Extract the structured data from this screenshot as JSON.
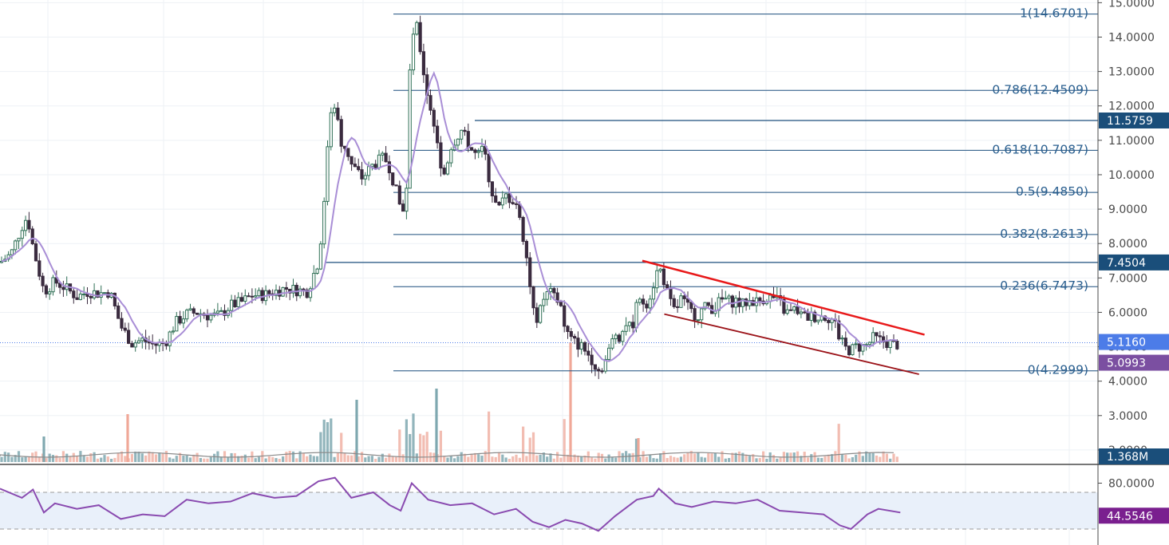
{
  "chart_data": {
    "type": "candlestick",
    "price_axis": {
      "ticks": [
        "15.0000",
        "14.0000",
        "13.0000",
        "12.0000",
        "11.0000",
        "10.0000",
        "9.0000",
        "8.0000",
        "7.0000",
        "6.0000",
        "5.0000",
        "4.0000",
        "3.0000",
        "2.0000"
      ],
      "range": [
        1.0,
        15.0
      ],
      "grid": true
    },
    "rsi_axis": {
      "ticks": [
        "80.0000"
      ],
      "upper_band": 70,
      "lower_band": 30,
      "range": [
        20,
        90
      ]
    },
    "fib_levels": [
      {
        "ratio": 1,
        "value": 14.6701,
        "label": "1(14.6701)"
      },
      {
        "ratio": 0.786,
        "value": 12.4509,
        "label": "0.786(12.4509)"
      },
      {
        "ratio": 0.618,
        "value": 10.7087,
        "label": "0.618(10.7087)"
      },
      {
        "ratio": 0.5,
        "value": 9.485,
        "label": "0.5(9.4850)"
      },
      {
        "ratio": 0.382,
        "value": 8.2613,
        "label": "0.382(8.2613)"
      },
      {
        "ratio": 0.236,
        "value": 6.7473,
        "label": "0.236(6.7473)"
      },
      {
        "ratio": 0,
        "value": 4.2999,
        "label": "0(4.2999)"
      }
    ],
    "horizontal_lines": [
      {
        "value": 11.5759,
        "label": "11.5759",
        "color": "#1a4e7a"
      },
      {
        "value": 7.4504,
        "label": "7.4504",
        "color": "#1a4e7a"
      }
    ],
    "price_badges": [
      {
        "value": 5.116,
        "label": "5.1160",
        "color": "#4c7ce8"
      },
      {
        "value": 5.0993,
        "label": "5.0993",
        "color": "#7b4fa1"
      }
    ],
    "volume_badge": {
      "label": "1.368M",
      "color": "#1a4e7a"
    },
    "rsi_badge": {
      "value": 44.5546,
      "label": "44.5546",
      "color": "#7a1f8f"
    },
    "trendlines": [
      {
        "name": "upper",
        "color": "#e8191a",
        "from": [
          0.585,
          7.5
        ],
        "to": [
          0.842,
          5.35
        ]
      },
      {
        "name": "lower",
        "color": "#9b1218",
        "from": [
          0.605,
          5.95
        ],
        "to": [
          0.837,
          4.2
        ]
      }
    ],
    "close_path": [
      [
        0,
        7.45
      ],
      [
        0.01,
        7.7
      ],
      [
        0.02,
        8.5
      ],
      [
        0.025,
        8.8
      ],
      [
        0.03,
        7.9
      ],
      [
        0.04,
        6.6
      ],
      [
        0.05,
        6.9
      ],
      [
        0.06,
        6.7
      ],
      [
        0.07,
        6.45
      ],
      [
        0.08,
        6.6
      ],
      [
        0.09,
        6.55
      ],
      [
        0.1,
        6.6
      ],
      [
        0.11,
        5.6
      ],
      [
        0.12,
        5.1
      ],
      [
        0.13,
        5.2
      ],
      [
        0.14,
        5.05
      ],
      [
        0.15,
        5.1
      ],
      [
        0.16,
        5.7
      ],
      [
        0.17,
        5.95
      ],
      [
        0.18,
        6.0
      ],
      [
        0.19,
        5.9
      ],
      [
        0.2,
        5.9
      ],
      [
        0.21,
        6.2
      ],
      [
        0.22,
        6.3
      ],
      [
        0.23,
        6.5
      ],
      [
        0.24,
        6.5
      ],
      [
        0.25,
        6.6
      ],
      [
        0.26,
        6.7
      ],
      [
        0.27,
        6.65
      ],
      [
        0.28,
        6.6
      ],
      [
        0.29,
        7.5
      ],
      [
        0.295,
        9.0
      ],
      [
        0.3,
        11.8
      ],
      [
        0.305,
        12.1
      ],
      [
        0.31,
        11.0
      ],
      [
        0.315,
        10.8
      ],
      [
        0.32,
        10.3
      ],
      [
        0.33,
        9.9
      ],
      [
        0.34,
        10.3
      ],
      [
        0.35,
        10.5
      ],
      [
        0.355,
        10.2
      ],
      [
        0.36,
        9.6
      ],
      [
        0.365,
        9.0
      ],
      [
        0.37,
        9.2
      ],
      [
        0.372,
        12.5
      ],
      [
        0.375,
        13.6
      ],
      [
        0.378,
        14.6
      ],
      [
        0.382,
        13.8
      ],
      [
        0.388,
        12.5
      ],
      [
        0.393,
        11.8
      ],
      [
        0.4,
        10.5
      ],
      [
        0.405,
        10.0
      ],
      [
        0.41,
        10.8
      ],
      [
        0.42,
        11.3
      ],
      [
        0.425,
        11.0
      ],
      [
        0.43,
        10.7
      ],
      [
        0.435,
        10.5
      ],
      [
        0.44,
        10.8
      ],
      [
        0.445,
        10.0
      ],
      [
        0.45,
        9.2
      ],
      [
        0.455,
        9.0
      ],
      [
        0.46,
        9.4
      ],
      [
        0.47,
        9.2
      ],
      [
        0.475,
        8.4
      ],
      [
        0.48,
        7.7
      ],
      [
        0.485,
        6.0
      ],
      [
        0.49,
        5.8
      ],
      [
        0.495,
        6.4
      ],
      [
        0.5,
        6.6
      ],
      [
        0.505,
        6.4
      ],
      [
        0.51,
        6.3
      ],
      [
        0.515,
        5.5
      ],
      [
        0.52,
        5.2
      ],
      [
        0.525,
        5.1
      ],
      [
        0.53,
        5.0
      ],
      [
        0.535,
        4.8
      ],
      [
        0.54,
        4.6
      ],
      [
        0.545,
        4.3
      ],
      [
        0.55,
        4.5
      ],
      [
        0.555,
        4.9
      ],
      [
        0.56,
        5.4
      ],
      [
        0.565,
        5.3
      ],
      [
        0.57,
        5.7
      ],
      [
        0.575,
        5.5
      ],
      [
        0.58,
        6.2
      ],
      [
        0.585,
        6.3
      ],
      [
        0.59,
        6.3
      ],
      [
        0.595,
        6.8
      ],
      [
        0.6,
        7.35
      ],
      [
        0.605,
        6.9
      ],
      [
        0.61,
        6.3
      ],
      [
        0.615,
        6.0
      ],
      [
        0.62,
        6.4
      ],
      [
        0.625,
        6.2
      ],
      [
        0.63,
        6.0
      ],
      [
        0.635,
        5.9
      ],
      [
        0.64,
        6.1
      ],
      [
        0.645,
        6.2
      ],
      [
        0.65,
        6.1
      ],
      [
        0.655,
        6.3
      ],
      [
        0.66,
        6.4
      ],
      [
        0.665,
        6.3
      ],
      [
        0.67,
        6.35
      ],
      [
        0.675,
        6.2
      ],
      [
        0.68,
        6.3
      ],
      [
        0.685,
        6.35
      ],
      [
        0.69,
        6.3
      ],
      [
        0.695,
        6.4
      ],
      [
        0.7,
        6.45
      ],
      [
        0.705,
        6.4
      ],
      [
        0.71,
        6.3
      ],
      [
        0.715,
        6.0
      ],
      [
        0.72,
        6.0
      ],
      [
        0.725,
        6.1
      ],
      [
        0.73,
        5.9
      ],
      [
        0.735,
        5.85
      ],
      [
        0.74,
        5.9
      ],
      [
        0.745,
        5.85
      ],
      [
        0.75,
        5.9
      ],
      [
        0.755,
        5.85
      ],
      [
        0.76,
        5.75
      ],
      [
        0.765,
        5.2
      ],
      [
        0.77,
        4.95
      ],
      [
        0.775,
        4.9
      ],
      [
        0.78,
        5.0
      ],
      [
        0.785,
        5.0
      ],
      [
        0.79,
        5.05
      ],
      [
        0.795,
        5.25
      ],
      [
        0.8,
        5.2
      ],
      [
        0.805,
        5.15
      ],
      [
        0.81,
        5.1
      ],
      [
        0.815,
        5.05
      ],
      [
        0.82,
        5.1
      ]
    ],
    "rsi_path": [
      [
        0,
        74
      ],
      [
        0.02,
        64
      ],
      [
        0.03,
        73
      ],
      [
        0.04,
        48
      ],
      [
        0.05,
        58
      ],
      [
        0.07,
        52
      ],
      [
        0.09,
        56
      ],
      [
        0.11,
        41
      ],
      [
        0.13,
        46
      ],
      [
        0.15,
        44
      ],
      [
        0.17,
        62
      ],
      [
        0.19,
        58
      ],
      [
        0.21,
        60
      ],
      [
        0.23,
        69
      ],
      [
        0.25,
        64
      ],
      [
        0.27,
        66
      ],
      [
        0.29,
        82
      ],
      [
        0.305,
        86
      ],
      [
        0.32,
        64
      ],
      [
        0.34,
        70
      ],
      [
        0.355,
        56
      ],
      [
        0.365,
        50
      ],
      [
        0.375,
        80
      ],
      [
        0.39,
        62
      ],
      [
        0.41,
        56
      ],
      [
        0.43,
        58
      ],
      [
        0.45,
        46
      ],
      [
        0.47,
        52
      ],
      [
        0.485,
        38
      ],
      [
        0.5,
        32
      ],
      [
        0.515,
        40
      ],
      [
        0.53,
        36
      ],
      [
        0.545,
        28
      ],
      [
        0.56,
        44
      ],
      [
        0.58,
        62
      ],
      [
        0.595,
        66
      ],
      [
        0.6,
        74
      ],
      [
        0.615,
        58
      ],
      [
        0.63,
        54
      ],
      [
        0.65,
        60
      ],
      [
        0.67,
        58
      ],
      [
        0.69,
        62
      ],
      [
        0.71,
        50
      ],
      [
        0.73,
        48
      ],
      [
        0.75,
        46
      ],
      [
        0.765,
        34
      ],
      [
        0.775,
        30
      ],
      [
        0.79,
        46
      ],
      [
        0.8,
        52
      ],
      [
        0.82,
        48
      ]
    ]
  }
}
